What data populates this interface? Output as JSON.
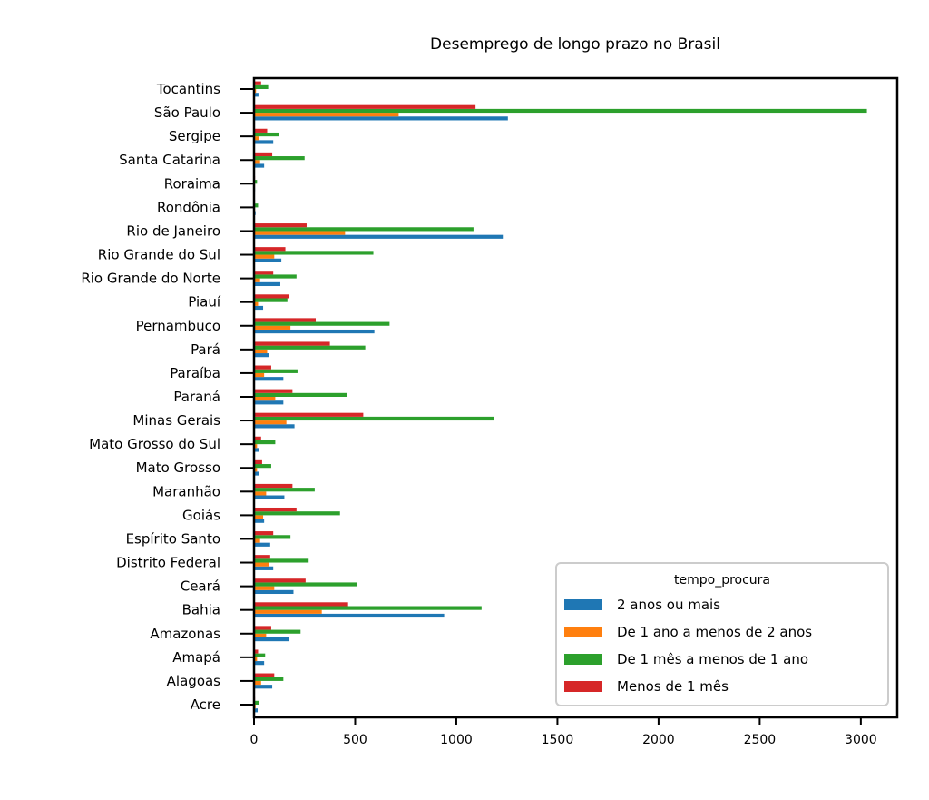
{
  "chart_data": {
    "type": "bar",
    "orientation": "horizontal",
    "title": "Desemprego de longo prazo no Brasil",
    "xlabel": "",
    "ylabel": "",
    "xlim": [
      0,
      3180
    ],
    "xticks": [
      0,
      500,
      1000,
      1500,
      2000,
      2500,
      3000
    ],
    "grid": false,
    "legend": {
      "title": "tempo_procura",
      "position": "lower-right"
    },
    "categories": [
      "Acre",
      "Alagoas",
      "Amapá",
      "Amazonas",
      "Bahia",
      "Ceará",
      "Distrito Federal",
      "Espírito Santo",
      "Goiás",
      "Maranhão",
      "Mato Grosso",
      "Mato Grosso do Sul",
      "Minas Gerais",
      "Paraná",
      "Paraíba",
      "Pará",
      "Pernambuco",
      "Piauí",
      "Rio Grande do Norte",
      "Rio Grande do Sul",
      "Rio de Janeiro",
      "Rondônia",
      "Roraima",
      "Santa Catarina",
      "Sergipe",
      "São Paulo",
      "Tocantins"
    ],
    "series": [
      {
        "name": "2 anos ou mais",
        "color": "#1f77b4",
        "values": [
          18,
          90,
          50,
          175,
          940,
          195,
          95,
          80,
          50,
          150,
          25,
          25,
          200,
          145,
          145,
          75,
          595,
          45,
          130,
          135,
          1230,
          8,
          5,
          50,
          95,
          1255,
          22
        ]
      },
      {
        "name": "De 1 ano a menos de 2 anos",
        "color": "#ff7f0e",
        "values": [
          8,
          35,
          15,
          60,
          335,
          100,
          75,
          30,
          45,
          60,
          15,
          15,
          160,
          105,
          50,
          65,
          180,
          20,
          30,
          100,
          450,
          5,
          5,
          30,
          25,
          715,
          10
        ]
      },
      {
        "name": "De 1 mês a menos de 1 ano",
        "color": "#2ca02c",
        "values": [
          25,
          145,
          55,
          230,
          1125,
          510,
          270,
          180,
          425,
          300,
          85,
          105,
          1185,
          460,
          215,
          550,
          670,
          165,
          210,
          590,
          1085,
          20,
          15,
          250,
          125,
          3030,
          70
        ]
      },
      {
        "name": "Menos de 1 mês",
        "color": "#d62728",
        "values": [
          5,
          100,
          20,
          85,
          465,
          255,
          80,
          95,
          210,
          190,
          40,
          35,
          540,
          190,
          85,
          375,
          305,
          175,
          95,
          155,
          260,
          5,
          5,
          90,
          65,
          1095,
          35
        ]
      }
    ]
  }
}
